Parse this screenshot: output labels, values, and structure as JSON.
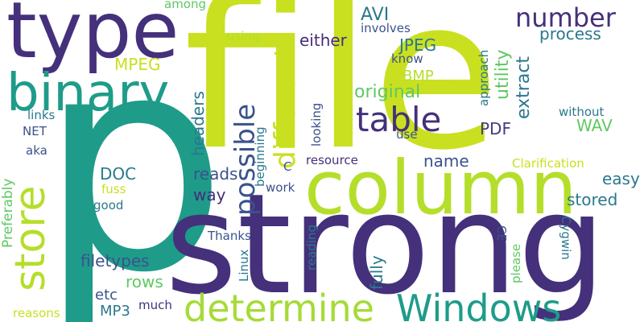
{
  "words": {
    "file": "file",
    "p": "p",
    "strong": "strong",
    "column": "column",
    "type": "type",
    "binary": "binary",
    "store": "store",
    "determine": "determine",
    "windows": "Windows",
    "table": "table",
    "number": "number",
    "different": "different",
    "possible": "possible",
    "avi": "AVI",
    "mpeg": "MPEG",
    "either": "either",
    "jpeg": "JPEG",
    "bmp": "BMP",
    "original": "original",
    "process": "process",
    "utility": "utility",
    "extract": "extract",
    "using": "using",
    "involves": "involves",
    "among": "among",
    "know": "know",
    "approach": "approach",
    "without": "without",
    "looking": "looking",
    "headers": "headers",
    "links": "links",
    "net": "NET",
    "aka": "aka",
    "preferably": "Preferably",
    "doc": "DOC",
    "fuss": "fuss",
    "good": "good",
    "reads": "reads",
    "way": "way",
    "name": "name",
    "wav": "WAV",
    "pdf": "PDF",
    "use": "use",
    "beginning": "beginning",
    "resource": "resource",
    "clarification": "Clarification",
    "easy": "easy",
    "stored": "stored",
    "c": "C",
    "work": "work",
    "filetypes": "filetypes",
    "rows": "rows",
    "thanks": "Thanks",
    "linux": "Linux",
    "reading": "reading",
    "fully": "fully",
    "etc": "etc",
    "mp3": "MP3",
    "much": "much",
    "reasons": "reasons",
    "cygwin": "Cygwin",
    "ce": "CE",
    "please": "please"
  },
  "palette": {
    "dark_purple": "#45307b",
    "deep_purple": "#472d7b",
    "teal": "#1e9c89",
    "blue_teal": "#2a788e",
    "slate_blue": "#3b528b",
    "green": "#5ec962",
    "lime": "#b5de2b",
    "yellow_green": "#c9e020",
    "light_lime": "#a5db36",
    "cyan_teal": "#25838e",
    "indigo": "#443983"
  }
}
